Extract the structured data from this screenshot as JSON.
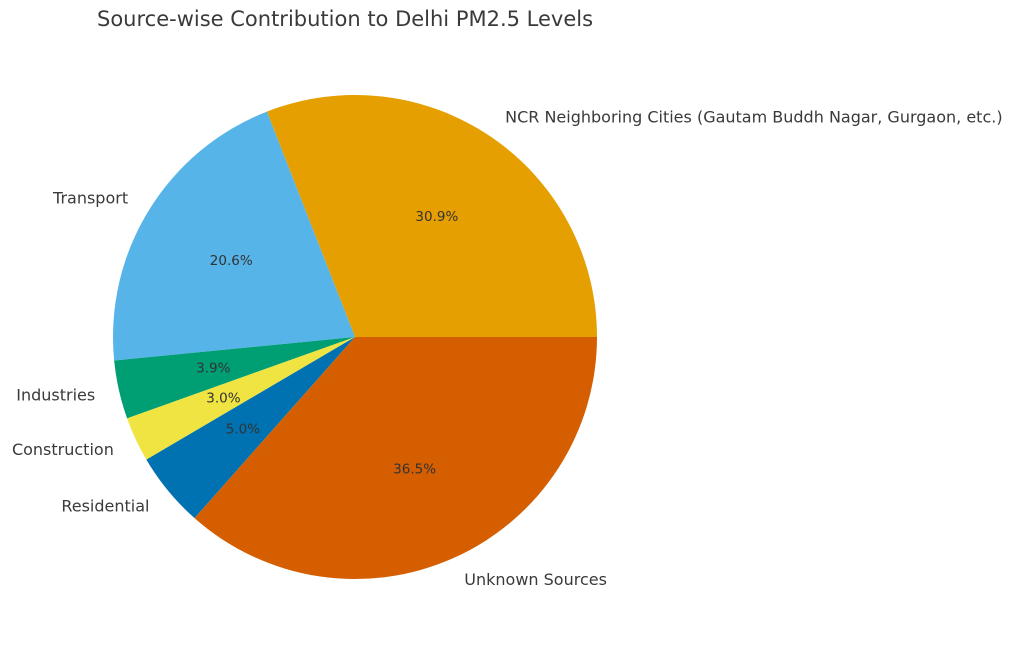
{
  "chart_data": {
    "type": "pie",
    "title": "Source-wise Contribution to Delhi PM2.5 Levels",
    "start_angle_deg": 0,
    "direction": "counterclockwise",
    "slices": [
      {
        "label": "NCR Neighboring Cities (Gautam Buddh Nagar, Gurgaon, etc.)",
        "value": 30.9,
        "pct_label": "30.9%",
        "color": "#E69F00"
      },
      {
        "label": "Transport",
        "value": 20.6,
        "pct_label": "20.6%",
        "color": "#56B4E9"
      },
      {
        "label": "Industries",
        "value": 3.9,
        "pct_label": "3.9%",
        "color": "#009E73"
      },
      {
        "label": "Construction",
        "value": 3.0,
        "pct_label": "3.0%",
        "color": "#F0E442"
      },
      {
        "label": "Residential",
        "value": 5.0,
        "pct_label": "5.0%",
        "color": "#0072B2"
      },
      {
        "label": "Unknown Sources",
        "value": 36.5,
        "pct_label": "36.5%",
        "color": "#D55E00"
      }
    ]
  }
}
